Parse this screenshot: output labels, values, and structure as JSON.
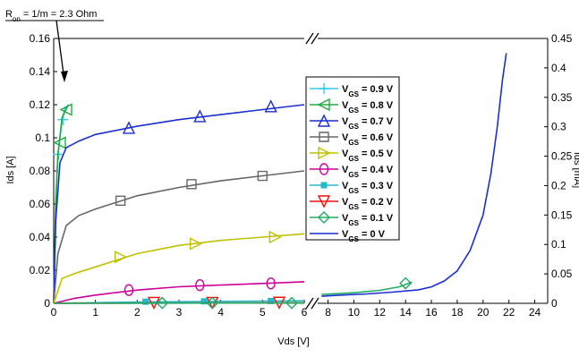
{
  "chart_data": {
    "type": "line",
    "xlabel": "Vds [V]",
    "ylabel_left": "Ids [A]",
    "ylabel_right": "Ids [mA]",
    "annotation": {
      "label": "R",
      "subscript": "on",
      "rest": " = 1/m = 2.3 Ohm"
    },
    "left_panel": {
      "xlim": [
        0,
        6
      ],
      "ylim": [
        0,
        0.16
      ],
      "xticks": [
        "0",
        "1",
        "2",
        "3",
        "4",
        "5",
        "6"
      ],
      "yticks": [
        "0",
        "0.02",
        "0.04",
        "0.06",
        "0.08",
        "0.1",
        "0.12",
        "0.14",
        "0.16"
      ]
    },
    "right_panel": {
      "xlim": [
        7.2,
        25
      ],
      "ylim": [
        0,
        0.45
      ],
      "xticks": [
        "8",
        "10",
        "12",
        "14",
        "16",
        "18",
        "20",
        "22",
        "24"
      ],
      "yticks": [
        "0",
        "0.05",
        "0.1",
        "0.15",
        "0.2",
        "0.25",
        "0.3",
        "0.35",
        "0.4",
        "0.45"
      ]
    },
    "series": [
      {
        "name": "V",
        "sub": "GS",
        "suffix": " = 0.9 V",
        "color": "#33ccee",
        "marker": "plus",
        "points": [
          [
            0,
            0
          ],
          [
            0.05,
            0.06
          ],
          [
            0.1,
            0.09
          ],
          [
            0.2,
            0.11
          ],
          [
            0.28,
            0.119
          ]
        ],
        "markers": [
          [
            0.12,
            0.09
          ],
          [
            0.22,
            0.111
          ]
        ]
      },
      {
        "name": "V",
        "sub": "GS",
        "suffix": " = 0.8 V",
        "color": "#22aa44",
        "marker": "tri-left",
        "points": [
          [
            0,
            0
          ],
          [
            0.05,
            0.06
          ],
          [
            0.1,
            0.09
          ],
          [
            0.2,
            0.112
          ],
          [
            0.35,
            0.12
          ]
        ],
        "markers": [
          [
            0.15,
            0.097
          ],
          [
            0.3,
            0.117
          ]
        ]
      },
      {
        "name": "V",
        "sub": "GS",
        "suffix": " = 0.7 V",
        "color": "#1a2fd0",
        "marker": "tri-up",
        "points": [
          [
            0,
            0
          ],
          [
            0.05,
            0.05
          ],
          [
            0.15,
            0.085
          ],
          [
            0.3,
            0.094
          ],
          [
            0.6,
            0.098
          ],
          [
            1,
            0.102
          ],
          [
            2,
            0.107
          ],
          [
            3,
            0.111
          ],
          [
            4,
            0.114
          ],
          [
            5,
            0.117
          ],
          [
            6,
            0.12
          ]
        ],
        "markers": [
          [
            1.8,
            0.106
          ],
          [
            3.5,
            0.113
          ],
          [
            5.2,
            0.119
          ]
        ]
      },
      {
        "name": "V",
        "sub": "GS",
        "suffix": " = 0.6 V",
        "color": "#666666",
        "marker": "square",
        "points": [
          [
            0,
            0
          ],
          [
            0.1,
            0.03
          ],
          [
            0.3,
            0.047
          ],
          [
            0.6,
            0.053
          ],
          [
            1,
            0.057
          ],
          [
            2,
            0.065
          ],
          [
            3,
            0.07
          ],
          [
            4,
            0.074
          ],
          [
            5,
            0.077
          ],
          [
            6,
            0.08
          ]
        ],
        "markers": [
          [
            1.6,
            0.062
          ],
          [
            3.3,
            0.072
          ],
          [
            5.0,
            0.077
          ]
        ]
      },
      {
        "name": "V",
        "sub": "GS",
        "suffix": " = 0.5 V",
        "color": "#c0c000",
        "marker": "tri-right",
        "points": [
          [
            0,
            0
          ],
          [
            0.2,
            0.015
          ],
          [
            0.5,
            0.018
          ],
          [
            1,
            0.022
          ],
          [
            2,
            0.03
          ],
          [
            3,
            0.035
          ],
          [
            4,
            0.038
          ],
          [
            5,
            0.04
          ],
          [
            6,
            0.042
          ]
        ],
        "markers": [
          [
            1.6,
            0.028
          ],
          [
            3.4,
            0.036
          ],
          [
            5.3,
            0.04
          ]
        ]
      },
      {
        "name": "V",
        "sub": "GS",
        "suffix": " = 0.4 V",
        "color": "#cc0099",
        "marker": "ellipse",
        "points": [
          [
            0,
            0
          ],
          [
            0.5,
            0.003
          ],
          [
            1,
            0.005
          ],
          [
            2,
            0.008
          ],
          [
            3,
            0.01
          ],
          [
            4,
            0.011
          ],
          [
            5,
            0.012
          ],
          [
            6,
            0.013
          ]
        ],
        "markers": [
          [
            1.8,
            0.008
          ],
          [
            3.5,
            0.011
          ],
          [
            5.2,
            0.012
          ]
        ]
      },
      {
        "name": "V",
        "sub": "GS",
        "suffix": " = 0.3 V",
        "color": "#22bbcc",
        "marker": "small-square",
        "points": [
          [
            0,
            0
          ],
          [
            2,
            0.0008
          ],
          [
            4,
            0.0012
          ],
          [
            6,
            0.0015
          ]
        ],
        "markers": [
          [
            2.2,
            0.001
          ],
          [
            3.6,
            0.0012
          ],
          [
            5.2,
            0.0014
          ]
        ]
      },
      {
        "name": "V",
        "sub": "GS",
        "suffix": " = 0.2 V",
        "color": "#ee1111",
        "marker": "tri-down",
        "points": [
          [
            0,
            0
          ],
          [
            6,
            0.0004
          ]
        ],
        "markers": [
          [
            2.4,
            0.0003
          ],
          [
            3.8,
            0.0003
          ],
          [
            5.4,
            0.0004
          ]
        ]
      },
      {
        "name": "V",
        "sub": "GS",
        "suffix": " = 0.1 V",
        "color": "#22aa66",
        "marker": "diamond",
        "points": [
          [
            0,
            0
          ],
          [
            6,
            0.0002
          ]
        ],
        "markers": [
          [
            2.6,
            0.0002
          ],
          [
            3.8,
            0.0002
          ],
          [
            5.7,
            0.0002
          ]
        ],
        "right_points": [
          [
            7.5,
            0.015
          ],
          [
            10,
            0.018
          ],
          [
            12,
            0.022
          ],
          [
            13.5,
            0.028
          ],
          [
            14.5,
            0.036
          ]
        ],
        "right_markers": [
          [
            14,
            0.034
          ]
        ]
      },
      {
        "name": "V",
        "sub": "GS",
        "suffix": " = 0 V",
        "color": "#1a2fd0",
        "marker": "none",
        "points": [],
        "markers": [],
        "right_points": [
          [
            7.5,
            0.012
          ],
          [
            9,
            0.014
          ],
          [
            11,
            0.016
          ],
          [
            13,
            0.019
          ],
          [
            15,
            0.023
          ],
          [
            16,
            0.028
          ],
          [
            17,
            0.038
          ],
          [
            18,
            0.055
          ],
          [
            19,
            0.09
          ],
          [
            20,
            0.15
          ],
          [
            20.6,
            0.22
          ],
          [
            21.1,
            0.3
          ],
          [
            21.5,
            0.38
          ],
          [
            21.8,
            0.425
          ]
        ],
        "right_markers": []
      }
    ]
  }
}
